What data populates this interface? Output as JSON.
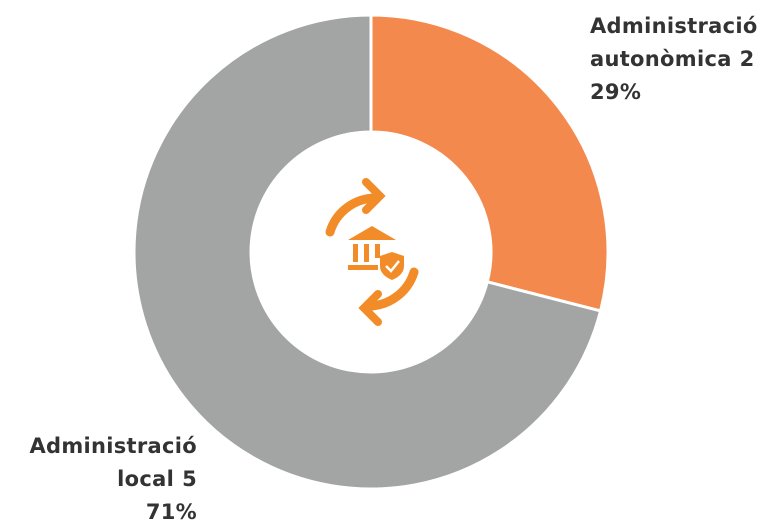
{
  "chart_data": {
    "type": "donut",
    "categories": [
      "Administració autonòmica",
      "Administració local"
    ],
    "counts": [
      2,
      5
    ],
    "values": [
      29,
      71
    ],
    "value_labels": [
      "29%",
      "71%"
    ],
    "colors": [
      "#f4894e",
      "#a3a5a5"
    ]
  }
}
